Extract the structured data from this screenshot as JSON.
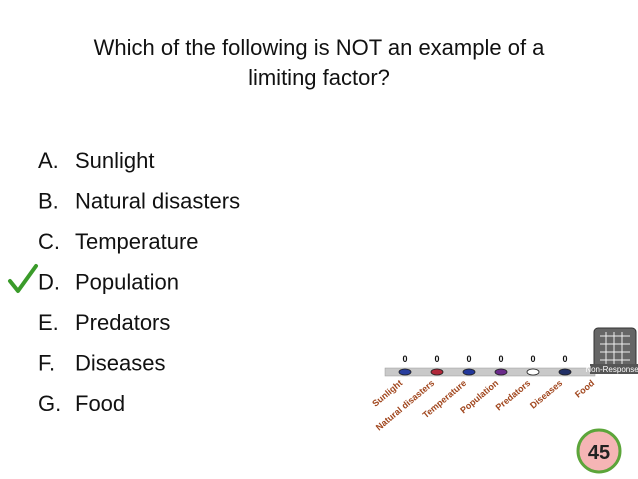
{
  "question_lines": [
    "Which of the following is NOT an example of a",
    "limiting factor?"
  ],
  "options": [
    {
      "letter": "A.",
      "text": "Sunlight"
    },
    {
      "letter": "B.",
      "text": "Natural disasters"
    },
    {
      "letter": "C.",
      "text": "Temperature"
    },
    {
      "letter": "D.",
      "text": "Population"
    },
    {
      "letter": "E.",
      "text": "Predators"
    },
    {
      "letter": "F.",
      "text": "Diseases"
    },
    {
      "letter": "G.",
      "text": "Food"
    }
  ],
  "chart_data": {
    "type": "bar",
    "categories": [
      "Sunlight",
      "Natural disasters",
      "Temperature",
      "Population",
      "Predators",
      "Diseases",
      "Food"
    ],
    "values": [
      0,
      0,
      0,
      0,
      0,
      0,
      null
    ],
    "colors": [
      "#2a3f9e",
      "#b0283a",
      "#22379a",
      "#6a2a8a",
      "#ffffff",
      "#223066",
      "#556b2f"
    ],
    "legend": "Non-Responses"
  },
  "timer": 45
}
